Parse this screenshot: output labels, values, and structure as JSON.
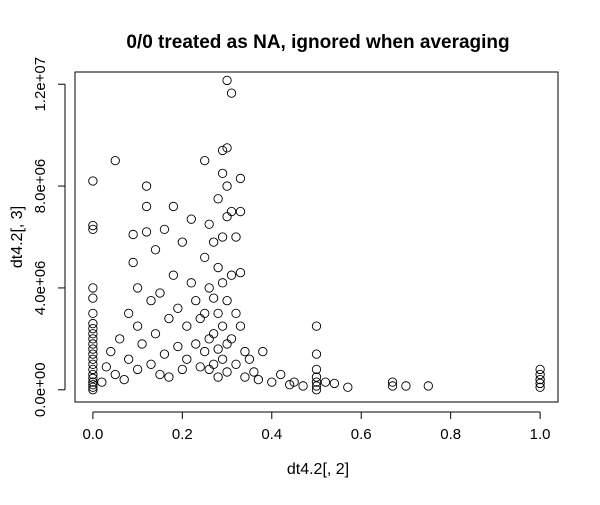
{
  "chart_data": {
    "type": "scatter",
    "title": "0/0 treated as NA, ignored when averaging",
    "xlabel": "dt4.2[, 2]",
    "ylabel": "dt4.2[, 3]",
    "xlim": [
      -0.04,
      1.04
    ],
    "ylim": [
      -480000,
      12480000
    ],
    "x_ticks": [
      0.0,
      0.2,
      0.4,
      0.6,
      0.8,
      1.0
    ],
    "x_tick_labels": [
      "0.0",
      "0.2",
      "0.4",
      "0.6",
      "0.8",
      "1.0"
    ],
    "y_ticks": [
      0,
      4000000,
      8000000,
      12000000
    ],
    "y_tick_labels": [
      "0.0e+00",
      "4.0e+06",
      "8.0e+06",
      "1.2e+07"
    ],
    "grid": false,
    "legend": "none",
    "marker": "open-circle",
    "color": "#000000",
    "note": "",
    "points": [
      [
        0.0,
        0
      ],
      [
        0.0,
        100000
      ],
      [
        0.0,
        200000
      ],
      [
        0.0,
        300000
      ],
      [
        0.0,
        450000
      ],
      [
        0.0,
        600000
      ],
      [
        0.0,
        800000
      ],
      [
        0.0,
        1000000
      ],
      [
        0.0,
        1200000
      ],
      [
        0.0,
        1400000
      ],
      [
        0.0,
        1600000
      ],
      [
        0.0,
        1800000
      ],
      [
        0.0,
        2000000
      ],
      [
        0.0,
        2200000
      ],
      [
        0.0,
        2400000
      ],
      [
        0.0,
        2600000
      ],
      [
        0.0,
        3000000
      ],
      [
        0.0,
        3600000
      ],
      [
        0.0,
        4000000
      ],
      [
        0.0,
        6300000
      ],
      [
        0.0,
        6450000
      ],
      [
        0.0,
        8200000
      ],
      [
        0.02,
        300000
      ],
      [
        0.03,
        900000
      ],
      [
        0.04,
        1500000
      ],
      [
        0.05,
        600000
      ],
      [
        0.05,
        9000000
      ],
      [
        0.06,
        2000000
      ],
      [
        0.07,
        400000
      ],
      [
        0.08,
        3000000
      ],
      [
        0.08,
        1200000
      ],
      [
        0.09,
        6100000
      ],
      [
        0.09,
        5000000
      ],
      [
        0.1,
        2500000
      ],
      [
        0.1,
        800000
      ],
      [
        0.1,
        4000000
      ],
      [
        0.11,
        1800000
      ],
      [
        0.12,
        7200000
      ],
      [
        0.12,
        8000000
      ],
      [
        0.12,
        6200000
      ],
      [
        0.13,
        3500000
      ],
      [
        0.13,
        1000000
      ],
      [
        0.14,
        5500000
      ],
      [
        0.14,
        2200000
      ],
      [
        0.15,
        600000
      ],
      [
        0.15,
        3800000
      ],
      [
        0.16,
        1400000
      ],
      [
        0.16,
        6300000
      ],
      [
        0.17,
        2800000
      ],
      [
        0.17,
        500000
      ],
      [
        0.18,
        7200000
      ],
      [
        0.18,
        4500000
      ],
      [
        0.19,
        1700000
      ],
      [
        0.19,
        3200000
      ],
      [
        0.2,
        800000
      ],
      [
        0.2,
        5800000
      ],
      [
        0.21,
        2500000
      ],
      [
        0.21,
        1200000
      ],
      [
        0.22,
        6700000
      ],
      [
        0.22,
        4200000
      ],
      [
        0.23,
        3500000
      ],
      [
        0.23,
        1800000
      ],
      [
        0.24,
        2800000
      ],
      [
        0.24,
        900000
      ],
      [
        0.25,
        9000000
      ],
      [
        0.25,
        5200000
      ],
      [
        0.25,
        3000000
      ],
      [
        0.25,
        1500000
      ],
      [
        0.26,
        6500000
      ],
      [
        0.26,
        4000000
      ],
      [
        0.26,
        2000000
      ],
      [
        0.26,
        800000
      ],
      [
        0.27,
        5800000
      ],
      [
        0.27,
        3600000
      ],
      [
        0.27,
        2200000
      ],
      [
        0.27,
        1000000
      ],
      [
        0.28,
        7500000
      ],
      [
        0.28,
        4800000
      ],
      [
        0.28,
        3000000
      ],
      [
        0.28,
        1600000
      ],
      [
        0.28,
        500000
      ],
      [
        0.29,
        9400000
      ],
      [
        0.29,
        8500000
      ],
      [
        0.29,
        6000000
      ],
      [
        0.29,
        4200000
      ],
      [
        0.29,
        2500000
      ],
      [
        0.29,
        1200000
      ],
      [
        0.3,
        12150000
      ],
      [
        0.3,
        9500000
      ],
      [
        0.3,
        8000000
      ],
      [
        0.3,
        6800000
      ],
      [
        0.3,
        3500000
      ],
      [
        0.3,
        1800000
      ],
      [
        0.3,
        700000
      ],
      [
        0.31,
        11650000
      ],
      [
        0.31,
        7000000
      ],
      [
        0.31,
        4500000
      ],
      [
        0.31,
        2000000
      ],
      [
        0.32,
        6000000
      ],
      [
        0.32,
        3000000
      ],
      [
        0.32,
        1000000
      ],
      [
        0.33,
        8300000
      ],
      [
        0.33,
        7000000
      ],
      [
        0.33,
        4600000
      ],
      [
        0.33,
        2500000
      ],
      [
        0.34,
        1500000
      ],
      [
        0.34,
        500000
      ],
      [
        0.35,
        1200000
      ],
      [
        0.36,
        700000
      ],
      [
        0.37,
        400000
      ],
      [
        0.38,
        1500000
      ],
      [
        0.4,
        300000
      ],
      [
        0.42,
        600000
      ],
      [
        0.44,
        200000
      ],
      [
        0.45,
        300000
      ],
      [
        0.47,
        150000
      ],
      [
        0.5,
        0
      ],
      [
        0.5,
        150000
      ],
      [
        0.5,
        300000
      ],
      [
        0.5,
        500000
      ],
      [
        0.5,
        800000
      ],
      [
        0.5,
        1400000
      ],
      [
        0.5,
        2500000
      ],
      [
        0.52,
        300000
      ],
      [
        0.54,
        250000
      ],
      [
        0.57,
        100000
      ],
      [
        0.67,
        150000
      ],
      [
        0.67,
        300000
      ],
      [
        0.7,
        150000
      ],
      [
        0.75,
        150000
      ],
      [
        1.0,
        100000
      ],
      [
        1.0,
        250000
      ],
      [
        1.0,
        400000
      ],
      [
        1.0,
        600000
      ],
      [
        1.0,
        800000
      ]
    ]
  }
}
